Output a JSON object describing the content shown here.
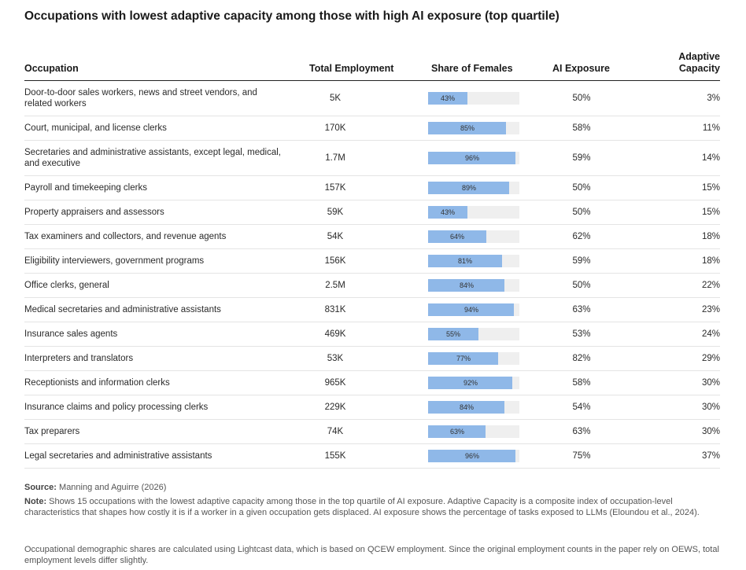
{
  "title": "Occupations with lowest adaptive capacity among those with high AI exposure (top quartile)",
  "headers": {
    "occupation": "Occupation",
    "employment": "Total Employment",
    "females": "Share of Females",
    "ai": "AI Exposure",
    "capacity_line1": "Adaptive",
    "capacity_line2": "Capacity"
  },
  "colors": {
    "bar": "#8fb8e8",
    "track": "#efefef"
  },
  "chart_data": {
    "type": "table",
    "rows": [
      {
        "occupation": "Door-to-door sales workers, news and street vendors, and related workers",
        "employment": "5K",
        "female_share": 43,
        "female_label": "43%",
        "ai": "50%",
        "capacity": "3%"
      },
      {
        "occupation": "Court, municipal, and license clerks",
        "employment": "170K",
        "female_share": 85,
        "female_label": "85%",
        "ai": "58%",
        "capacity": "11%"
      },
      {
        "occupation": "Secretaries and administrative assistants, except legal, medical, and executive",
        "employment": "1.7M",
        "female_share": 96,
        "female_label": "96%",
        "ai": "59%",
        "capacity": "14%"
      },
      {
        "occupation": "Payroll and timekeeping clerks",
        "employment": "157K",
        "female_share": 89,
        "female_label": "89%",
        "ai": "50%",
        "capacity": "15%"
      },
      {
        "occupation": "Property appraisers and assessors",
        "employment": "59K",
        "female_share": 43,
        "female_label": "43%",
        "ai": "50%",
        "capacity": "15%"
      },
      {
        "occupation": "Tax examiners and collectors, and revenue agents",
        "employment": "54K",
        "female_share": 64,
        "female_label": "64%",
        "ai": "62%",
        "capacity": "18%"
      },
      {
        "occupation": "Eligibility interviewers, government programs",
        "employment": "156K",
        "female_share": 81,
        "female_label": "81%",
        "ai": "59%",
        "capacity": "18%"
      },
      {
        "occupation": "Office clerks, general",
        "employment": "2.5M",
        "female_share": 84,
        "female_label": "84%",
        "ai": "50%",
        "capacity": "22%"
      },
      {
        "occupation": "Medical secretaries and administrative assistants",
        "employment": "831K",
        "female_share": 94,
        "female_label": "94%",
        "ai": "63%",
        "capacity": "23%"
      },
      {
        "occupation": "Insurance sales agents",
        "employment": "469K",
        "female_share": 55,
        "female_label": "55%",
        "ai": "53%",
        "capacity": "24%"
      },
      {
        "occupation": "Interpreters and translators",
        "employment": "53K",
        "female_share": 77,
        "female_label": "77%",
        "ai": "82%",
        "capacity": "29%"
      },
      {
        "occupation": "Receptionists and information clerks",
        "employment": "965K",
        "female_share": 92,
        "female_label": "92%",
        "ai": "58%",
        "capacity": "30%"
      },
      {
        "occupation": "Insurance claims and policy processing clerks",
        "employment": "229K",
        "female_share": 84,
        "female_label": "84%",
        "ai": "54%",
        "capacity": "30%"
      },
      {
        "occupation": "Tax preparers",
        "employment": "74K",
        "female_share": 63,
        "female_label": "63%",
        "ai": "63%",
        "capacity": "30%"
      },
      {
        "occupation": "Legal secretaries and administrative assistants",
        "employment": "155K",
        "female_share": 96,
        "female_label": "96%",
        "ai": "75%",
        "capacity": "37%"
      }
    ]
  },
  "footer": {
    "source_label": "Source:",
    "source_text": " Manning and Aguirre (2026)",
    "note_label": "Note:",
    "note_text": " Shows 15 occupations with the lowest adaptive capacity among those in the top quartile of AI exposure. Adaptive Capacity is a composite index of occupation-level characteristics that shapes how costly it is if a worker in a given occupation gets displaced. AI exposure shows the percentage of tasks exposed to LLMs (Eloundou et al., 2024).",
    "demographic_text": "Occupational demographic shares are calculated using Lightcast data, which is based on QCEW employment. Since the original employment counts in the paper rely on OEWS, total employment levels differ slightly."
  }
}
